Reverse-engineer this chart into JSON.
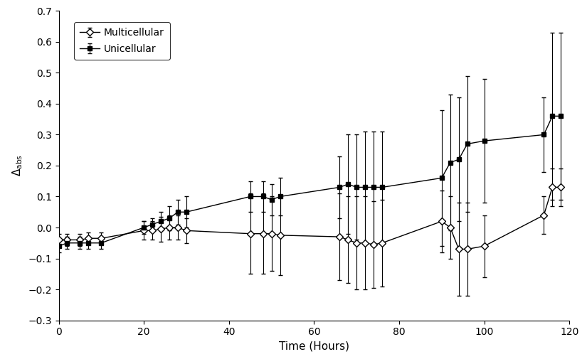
{
  "multicellular_x": [
    0,
    2,
    5,
    7,
    10,
    20,
    22,
    24,
    26,
    28,
    30,
    45,
    48,
    50,
    52,
    66,
    68,
    70,
    72,
    74,
    76,
    90,
    92,
    94,
    96,
    100,
    114,
    116,
    118
  ],
  "multicellular_y": [
    -0.04,
    -0.04,
    -0.04,
    -0.035,
    -0.035,
    -0.01,
    -0.01,
    -0.005,
    0.0,
    0.0,
    -0.01,
    -0.02,
    -0.02,
    -0.02,
    -0.025,
    -0.03,
    -0.04,
    -0.05,
    -0.05,
    -0.055,
    -0.05,
    0.02,
    0.0,
    -0.07,
    -0.07,
    -0.06,
    0.04,
    0.13,
    0.13
  ],
  "multicellular_yerr": [
    0.02,
    0.02,
    0.02,
    0.02,
    0.02,
    0.03,
    0.03,
    0.04,
    0.04,
    0.04,
    0.04,
    0.13,
    0.13,
    0.12,
    0.13,
    0.14,
    0.14,
    0.15,
    0.15,
    0.14,
    0.14,
    0.1,
    0.1,
    0.15,
    0.15,
    0.1,
    0.06,
    0.06,
    0.06
  ],
  "unicellular_x": [
    0,
    2,
    5,
    7,
    10,
    20,
    22,
    24,
    26,
    28,
    30,
    45,
    48,
    50,
    52,
    66,
    68,
    70,
    72,
    74,
    76,
    90,
    92,
    94,
    96,
    100,
    114,
    116,
    118
  ],
  "unicellular_y": [
    -0.06,
    -0.05,
    -0.05,
    -0.05,
    -0.05,
    0.0,
    0.01,
    0.02,
    0.03,
    0.05,
    0.05,
    0.1,
    0.1,
    0.09,
    0.1,
    0.13,
    0.14,
    0.13,
    0.13,
    0.13,
    0.13,
    0.16,
    0.21,
    0.22,
    0.27,
    0.28,
    0.3,
    0.36,
    0.36
  ],
  "unicellular_yerr": [
    0.02,
    0.02,
    0.02,
    0.02,
    0.02,
    0.02,
    0.02,
    0.03,
    0.04,
    0.04,
    0.05,
    0.05,
    0.05,
    0.05,
    0.06,
    0.1,
    0.16,
    0.17,
    0.18,
    0.18,
    0.18,
    0.22,
    0.22,
    0.2,
    0.22,
    0.2,
    0.12,
    0.27,
    0.27
  ],
  "xlabel": "Time (Hours)",
  "ylabel": "Δabs",
  "xlim": [
    0,
    120
  ],
  "ylim": [
    -0.3,
    0.7
  ],
  "yticks": [
    -0.3,
    -0.2,
    -0.1,
    0.0,
    0.1,
    0.2,
    0.3,
    0.4,
    0.5,
    0.6,
    0.7
  ],
  "xticks": [
    0,
    20,
    40,
    60,
    80,
    100,
    120
  ],
  "legend_multicellular": "Multicellular",
  "legend_unicellular": "Unicellular",
  "background_color": "#ffffff",
  "line_color": "#000000",
  "figwidth": 8.25,
  "figheight": 5.12,
  "dpi": 100
}
